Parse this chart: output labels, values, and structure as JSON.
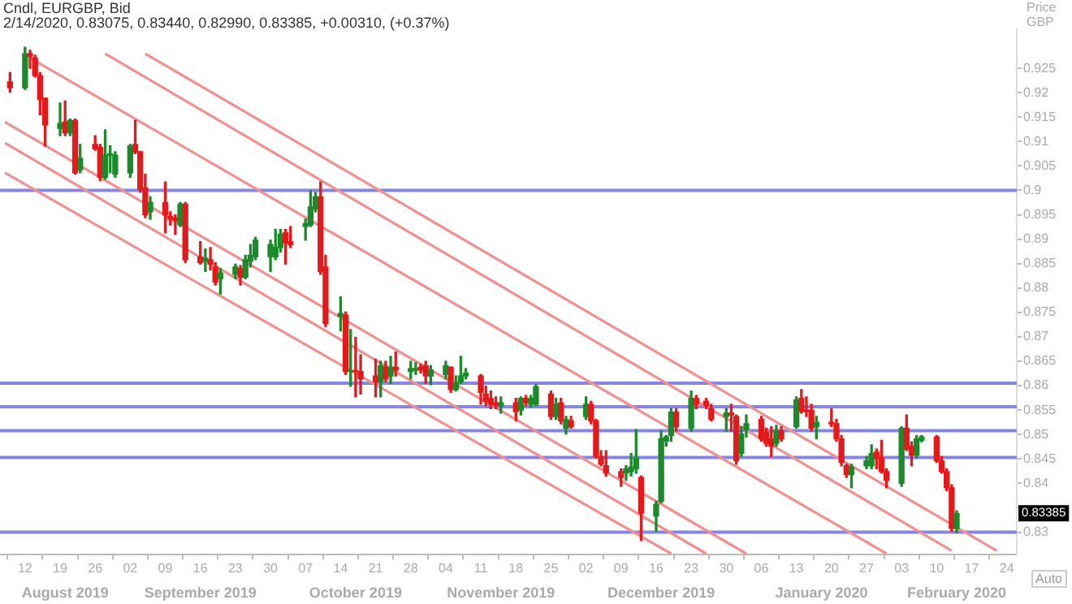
{
  "chart_data": {
    "type": "candlestick",
    "title": "Cndl, EURGBP, Bid",
    "subtitle": "2/14/2020, 0.83075, 0.83440, 0.82990, 0.83385, +0.00310, (+0.37%)",
    "ylabel": "Price GBP",
    "x": [
      "2019-08-09",
      "2019-08-12",
      "2019-08-13",
      "2019-08-14",
      "2019-08-15",
      "2019-08-16",
      "2019-08-19",
      "2019-08-20",
      "2019-08-21",
      "2019-08-22",
      "2019-08-23",
      "2019-08-26",
      "2019-08-27",
      "2019-08-28",
      "2019-08-29",
      "2019-08-30",
      "2019-09-02",
      "2019-09-03",
      "2019-09-04",
      "2019-09-05",
      "2019-09-06",
      "2019-09-09",
      "2019-09-10",
      "2019-09-11",
      "2019-09-12",
      "2019-09-13",
      "2019-09-16",
      "2019-09-17",
      "2019-09-18",
      "2019-09-19",
      "2019-09-20",
      "2019-09-23",
      "2019-09-24",
      "2019-09-25",
      "2019-09-26",
      "2019-09-27",
      "2019-09-30",
      "2019-10-01",
      "2019-10-02",
      "2019-10-03",
      "2019-10-04",
      "2019-10-07",
      "2019-10-08",
      "2019-10-09",
      "2019-10-10",
      "2019-10-11",
      "2019-10-14",
      "2019-10-15",
      "2019-10-16",
      "2019-10-17",
      "2019-10-18",
      "2019-10-21",
      "2019-10-22",
      "2019-10-23",
      "2019-10-24",
      "2019-10-25",
      "2019-10-28",
      "2019-10-29",
      "2019-10-30",
      "2019-10-31",
      "2019-11-01",
      "2019-11-04",
      "2019-11-05",
      "2019-11-06",
      "2019-11-07",
      "2019-11-08",
      "2019-11-11",
      "2019-11-12",
      "2019-11-13",
      "2019-11-14",
      "2019-11-15",
      "2019-11-18",
      "2019-11-19",
      "2019-11-20",
      "2019-11-21",
      "2019-11-22",
      "2019-11-25",
      "2019-11-26",
      "2019-11-27",
      "2019-11-28",
      "2019-11-29",
      "2019-12-02",
      "2019-12-03",
      "2019-12-04",
      "2019-12-05",
      "2019-12-06",
      "2019-12-09",
      "2019-12-10",
      "2019-12-11",
      "2019-12-12",
      "2019-12-13",
      "2019-12-16",
      "2019-12-17",
      "2019-12-18",
      "2019-12-19",
      "2019-12-20",
      "2019-12-23",
      "2019-12-24",
      "2019-12-26",
      "2019-12-27",
      "2019-12-30",
      "2019-12-31",
      "2020-01-01",
      "2020-01-02",
      "2020-01-03",
      "2020-01-06",
      "2020-01-07",
      "2020-01-08",
      "2020-01-09",
      "2020-01-10",
      "2020-01-13",
      "2020-01-14",
      "2020-01-15",
      "2020-01-16",
      "2020-01-17",
      "2020-01-20",
      "2020-01-21",
      "2020-01-22",
      "2020-01-23",
      "2020-01-24",
      "2020-01-27",
      "2020-01-28",
      "2020-01-29",
      "2020-01-30",
      "2020-01-31",
      "2020-02-03",
      "2020-02-04",
      "2020-02-05",
      "2020-02-06",
      "2020-02-07",
      "2020-02-10",
      "2020-02-11",
      "2020-02-12",
      "2020-02-13",
      "2020-02-14"
    ],
    "ohlc": [
      [
        0.9222,
        0.9241,
        0.9201,
        0.921
      ],
      [
        0.921,
        0.9293,
        0.9207,
        0.928
      ],
      [
        0.928,
        0.9287,
        0.925,
        0.9274
      ],
      [
        0.9271,
        0.9277,
        0.9232,
        0.9235
      ],
      [
        0.9235,
        0.9241,
        0.9155,
        0.9186
      ],
      [
        0.9189,
        0.9189,
        0.9091,
        0.9134
      ],
      [
        0.9127,
        0.9179,
        0.9112,
        0.9137
      ],
      [
        0.914,
        0.9183,
        0.9112,
        0.9118
      ],
      [
        0.9118,
        0.9146,
        0.9112,
        0.9143
      ],
      [
        0.9143,
        0.9146,
        0.9033,
        0.9036
      ],
      [
        0.9042,
        0.9094,
        0.9036,
        0.9066
      ],
      [
        0.9094,
        0.9112,
        0.9082,
        0.9085
      ],
      [
        0.9088,
        0.9094,
        0.902,
        0.9027
      ],
      [
        0.9027,
        0.9124,
        0.9023,
        0.9072
      ],
      [
        0.9072,
        0.9091,
        0.9036,
        0.9075
      ],
      [
        0.9033,
        0.9079,
        0.9027,
        0.9072
      ],
      [
        0.9036,
        0.9094,
        0.9027,
        0.9091
      ],
      [
        0.9094,
        0.9143,
        0.9075,
        0.9079
      ],
      [
        0.9079,
        0.9079,
        0.8996,
        0.9002
      ],
      [
        0.9005,
        0.9033,
        0.8944,
        0.895
      ],
      [
        0.8956,
        0.8987,
        0.8941,
        0.8975
      ],
      [
        0.8975,
        0.9017,
        0.8913,
        0.895
      ],
      [
        0.8947,
        0.8956,
        0.8929,
        0.8941
      ],
      [
        0.8944,
        0.895,
        0.891,
        0.8938
      ],
      [
        0.8929,
        0.8975,
        0.8926,
        0.8972
      ],
      [
        0.8972,
        0.8975,
        0.8852,
        0.8858
      ],
      [
        0.8864,
        0.8895,
        0.8849,
        0.8852
      ],
      [
        0.8855,
        0.888,
        0.8834,
        0.8861
      ],
      [
        0.8858,
        0.8883,
        0.8837,
        0.8849
      ],
      [
        0.8843,
        0.8852,
        0.8806,
        0.8812
      ],
      [
        0.8819,
        0.884,
        0.8788,
        0.8831
      ],
      [
        0.8828,
        0.8849,
        0.8819,
        0.8843
      ],
      [
        0.884,
        0.8846,
        0.8806,
        0.8822
      ],
      [
        0.8822,
        0.8867,
        0.8819,
        0.8858
      ],
      [
        0.8855,
        0.8889,
        0.8843,
        0.8867
      ],
      [
        0.8864,
        0.8904,
        0.8858,
        0.8898
      ],
      [
        0.8864,
        0.8898,
        0.8834,
        0.8889
      ],
      [
        0.8864,
        0.892,
        0.8858,
        0.8883
      ],
      [
        0.8883,
        0.892,
        0.8874,
        0.891
      ],
      [
        0.8913,
        0.892,
        0.8849,
        0.8892
      ],
      [
        0.8895,
        0.8926,
        0.8883,
        0.8889
      ],
      [
        0.8926,
        0.8941,
        0.8898,
        0.8932
      ],
      [
        0.8929,
        0.8999,
        0.8926,
        0.8966
      ],
      [
        0.8962,
        0.8996,
        0.8956,
        0.8987
      ],
      [
        0.8987,
        0.9017,
        0.8828,
        0.8834
      ],
      [
        0.8843,
        0.8867,
        0.8721,
        0.8727
      ],
      [
        0.8742,
        0.8782,
        0.8712,
        0.8748
      ],
      [
        0.8745,
        0.8751,
        0.8623,
        0.8629
      ],
      [
        0.8629,
        0.8715,
        0.8599,
        0.8631
      ],
      [
        0.8631,
        0.8699,
        0.8577,
        0.8629
      ],
      [
        0.8629,
        0.8663,
        0.8583,
        0.8614
      ],
      [
        0.862,
        0.8654,
        0.8577,
        0.8608
      ],
      [
        0.8608,
        0.865,
        0.8577,
        0.8641
      ],
      [
        0.8638,
        0.865,
        0.8608,
        0.8614
      ],
      [
        0.862,
        0.866,
        0.8605,
        0.8638
      ],
      [
        0.8638,
        0.8669,
        0.862,
        0.8632
      ],
      [
        0.8629,
        0.865,
        0.8614,
        0.8635
      ],
      [
        0.8632,
        0.8647,
        0.8623,
        0.8635
      ],
      [
        0.8638,
        0.8644,
        0.8626,
        0.8632
      ],
      [
        0.8641,
        0.865,
        0.8605,
        0.862
      ],
      [
        0.862,
        0.8641,
        0.8602,
        0.8632
      ],
      [
        0.8623,
        0.865,
        0.8614,
        0.8641
      ],
      [
        0.8638,
        0.8638,
        0.8586,
        0.8592
      ],
      [
        0.8592,
        0.862,
        0.8589,
        0.8605
      ],
      [
        0.8608,
        0.866,
        0.8605,
        0.862
      ],
      [
        0.862,
        0.8635,
        0.8614,
        0.8626
      ],
      [
        0.862,
        0.8623,
        0.8562,
        0.8586
      ],
      [
        0.8583,
        0.8599,
        0.8559,
        0.8568
      ],
      [
        0.8574,
        0.8589,
        0.8553,
        0.8562
      ],
      [
        0.8565,
        0.8577,
        0.8553,
        0.8559
      ],
      [
        0.8559,
        0.8577,
        0.8544,
        0.8565
      ],
      [
        0.8565,
        0.8574,
        0.8528,
        0.8547
      ],
      [
        0.855,
        0.8577,
        0.854,
        0.8574
      ],
      [
        0.8574,
        0.858,
        0.8559,
        0.8565
      ],
      [
        0.8562,
        0.858,
        0.8556,
        0.8574
      ],
      [
        0.8562,
        0.8602,
        0.8559,
        0.8598
      ],
      [
        0.8583,
        0.8589,
        0.8531,
        0.8537
      ],
      [
        0.8537,
        0.8574,
        0.8531,
        0.8562
      ],
      [
        0.8565,
        0.8574,
        0.8522,
        0.8528
      ],
      [
        0.8513,
        0.8537,
        0.8501,
        0.8531
      ],
      [
        0.8528,
        0.8537,
        0.8513,
        0.8516
      ],
      [
        0.8537,
        0.8577,
        0.8531,
        0.8562
      ],
      [
        0.8562,
        0.8568,
        0.8522,
        0.8528
      ],
      [
        0.8528,
        0.8531,
        0.8452,
        0.8455
      ],
      [
        0.8455,
        0.8467,
        0.8436,
        0.8439
      ],
      [
        0.8436,
        0.8467,
        0.8415,
        0.8421
      ],
      [
        0.8424,
        0.843,
        0.8394,
        0.8412
      ],
      [
        0.8421,
        0.8436,
        0.8406,
        0.843
      ],
      [
        0.8424,
        0.8461,
        0.8415,
        0.8433
      ],
      [
        0.843,
        0.851,
        0.8421,
        0.8452
      ],
      [
        0.8412,
        0.8415,
        0.8283,
        0.8339
      ],
      [
        0.8333,
        0.8363,
        0.8302,
        0.8357
      ],
      [
        0.8363,
        0.8507,
        0.836,
        0.8491
      ],
      [
        0.8486,
        0.8498,
        0.8476,
        0.8495
      ],
      [
        0.8498,
        0.8553,
        0.8486,
        0.8546
      ],
      [
        0.8546,
        0.8553,
        0.8507,
        0.8516
      ],
      [
        0.8513,
        0.8589,
        0.8507,
        0.8574
      ],
      [
        0.8574,
        0.858,
        0.8553,
        0.8562
      ],
      [
        0.8568,
        0.8574,
        0.8553,
        0.8559
      ],
      [
        0.8553,
        0.8562,
        0.8528,
        0.8531
      ],
      [
        0.8537,
        0.8553,
        0.8507,
        0.8544
      ],
      [
        0.8544,
        0.8562,
        0.8507,
        0.854
      ],
      [
        0.8537,
        0.854,
        0.8439,
        0.8446
      ],
      [
        0.8461,
        0.8516,
        0.8455,
        0.8501
      ],
      [
        0.851,
        0.854,
        0.8495,
        0.8522
      ],
      [
        0.8531,
        0.8537,
        0.8486,
        0.8491
      ],
      [
        0.8504,
        0.8513,
        0.8476,
        0.8482
      ],
      [
        0.8491,
        0.8516,
        0.8455,
        0.8476
      ],
      [
        0.8482,
        0.8519,
        0.8476,
        0.8507
      ],
      [
        0.8507,
        0.8516,
        0.8486,
        0.8491
      ],
      [
        0.8516,
        0.8577,
        0.8513,
        0.8571
      ],
      [
        0.8574,
        0.8592,
        0.8544,
        0.8547
      ],
      [
        0.855,
        0.8577,
        0.8537,
        0.8547
      ],
      [
        0.855,
        0.8562,
        0.8507,
        0.8513
      ],
      [
        0.8516,
        0.8537,
        0.8491,
        0.8525
      ],
      [
        0.8525,
        0.8553,
        0.8516,
        0.8522
      ],
      [
        0.8522,
        0.8531,
        0.8486,
        0.8491
      ],
      [
        0.8491,
        0.8498,
        0.8436,
        0.8443
      ],
      [
        0.8436,
        0.8439,
        0.8412,
        0.8418
      ],
      [
        0.8418,
        0.8439,
        0.8391,
        0.8433
      ],
      [
        0.8436,
        0.8455,
        0.843,
        0.8446
      ],
      [
        0.8436,
        0.8479,
        0.843,
        0.8461
      ],
      [
        0.8464,
        0.847,
        0.843,
        0.8452
      ],
      [
        0.8452,
        0.8488,
        0.8421,
        0.8424
      ],
      [
        0.8424,
        0.843,
        0.8391,
        0.8406
      ],
      [
        0.84,
        0.8516,
        0.8394,
        0.8513
      ],
      [
        0.8513,
        0.854,
        0.8467,
        0.847
      ],
      [
        0.8476,
        0.8485,
        0.8436,
        0.8458
      ],
      [
        0.8458,
        0.8498,
        0.8452,
        0.8491
      ],
      [
        0.8488,
        0.8498,
        0.8485,
        0.8495
      ],
      [
        0.8495,
        0.8498,
        0.8443,
        0.8446
      ],
      [
        0.8446,
        0.8455,
        0.8421,
        0.8424
      ],
      [
        0.8424,
        0.843,
        0.8385,
        0.8391
      ],
      [
        0.8391,
        0.8397,
        0.8302,
        0.8308
      ],
      [
        0.83075,
        0.8344,
        0.8299,
        0.83385
      ]
    ],
    "colors": [
      "#e31a1c",
      "#1b8a2b",
      "#e31a1c",
      "#e31a1c",
      "#e31a1c",
      "#e31a1c",
      "#1b8a2b",
      "#e31a1c",
      "#1b8a2b",
      "#e31a1c",
      "#1b8a2b",
      "#e31a1c",
      "#e31a1c",
      "#1b8a2b",
      "#1b8a2b",
      "#1b8a2b",
      "#1b8a2b",
      "#e31a1c",
      "#e31a1c",
      "#e31a1c",
      "#1b8a2b",
      "#e31a1c",
      "#e31a1c",
      "#e31a1c",
      "#1b8a2b",
      "#e31a1c",
      "#e31a1c",
      "#1b8a2b",
      "#e31a1c",
      "#e31a1c",
      "#1b8a2b",
      "#1b8a2b",
      "#e31a1c",
      "#1b8a2b",
      "#1b8a2b",
      "#1b8a2b",
      "#1b8a2b",
      "#1b8a2b",
      "#1b8a2b",
      "#e31a1c",
      "#e31a1c",
      "#1b8a2b",
      "#1b8a2b",
      "#1b8a2b",
      "#e31a1c",
      "#e31a1c",
      "#1b8a2b",
      "#e31a1c",
      "#1b8a2b",
      "#e31a1c",
      "#e31a1c",
      "#e31a1c",
      "#1b8a2b",
      "#e31a1c",
      "#1b8a2b",
      "#e31a1c",
      "#1b8a2b",
      "#1b8a2b",
      "#e31a1c",
      "#e31a1c",
      "#1b8a2b",
      "#1b8a2b",
      "#e31a1c",
      "#1b8a2b",
      "#1b8a2b",
      "#1b8a2b",
      "#e31a1c",
      "#e31a1c",
      "#e31a1c",
      "#e31a1c",
      "#1b8a2b",
      "#e31a1c",
      "#1b8a2b",
      "#e31a1c",
      "#1b8a2b",
      "#1b8a2b",
      "#e31a1c",
      "#1b8a2b",
      "#e31a1c",
      "#1b8a2b",
      "#e31a1c",
      "#1b8a2b",
      "#e31a1c",
      "#e31a1c",
      "#e31a1c",
      "#e31a1c",
      "#e31a1c",
      "#1b8a2b",
      "#1b8a2b",
      "#1b8a2b",
      "#e31a1c",
      "#1b8a2b",
      "#1b8a2b",
      "#1b8a2b",
      "#1b8a2b",
      "#e31a1c",
      "#1b8a2b",
      "#e31a1c",
      "#e31a1c",
      "#e31a1c",
      "#1b8a2b",
      "#e31a1c",
      "#e31a1c",
      "#1b8a2b",
      "#1b8a2b",
      "#e31a1c",
      "#e31a1c",
      "#e31a1c",
      "#1b8a2b",
      "#e31a1c",
      "#1b8a2b",
      "#e31a1c",
      "#e31a1c",
      "#e31a1c",
      "#1b8a2b",
      "#e31a1c",
      "#e31a1c",
      "#e31a1c",
      "#e31a1c",
      "#1b8a2b",
      "#1b8a2b",
      "#1b8a2b",
      "#e31a1c",
      "#e31a1c",
      "#e31a1c",
      "#1b8a2b",
      "#e31a1c",
      "#e31a1c",
      "#1b8a2b",
      "#1b8a2b",
      "#e31a1c",
      "#e31a1c",
      "#e31a1c",
      "#e31a1c",
      "#1b8a2b"
    ],
    "series": [
      {
        "type": "line",
        "color": "#f09090",
        "x": [
          "2019-08-08",
          "2019-12-19"
        ],
        "values": [
          0.9036,
          0.8256
        ]
      },
      {
        "type": "line",
        "color": "#f09090",
        "x": [
          "2019-08-08",
          "2019-12-26"
        ],
        "values": [
          0.9097,
          0.8256
        ]
      },
      {
        "type": "line",
        "color": "#f09090",
        "x": [
          "2019-08-08",
          "2020-01-03"
        ],
        "values": [
          0.914,
          0.8256
        ]
      },
      {
        "type": "line",
        "color": "#f09090",
        "x": [
          "2019-08-13",
          "2020-01-31"
        ],
        "values": [
          0.9271,
          0.8256
        ]
      },
      {
        "type": "line",
        "color": "#f09090",
        "x": [
          "2019-08-28",
          "2020-02-13"
        ],
        "values": [
          0.928,
          0.8262
        ]
      },
      {
        "type": "line",
        "color": "#f09090",
        "x": [
          "2019-09-05",
          "2020-02-22"
        ],
        "values": [
          0.928,
          0.8262
        ]
      }
    ],
    "ref_lines": [
      {
        "axis": "y",
        "value": 0.9,
        "color": "#8585e6"
      },
      {
        "axis": "y",
        "value": 0.8605,
        "color": "#8585e6"
      },
      {
        "axis": "y",
        "value": 0.8557,
        "color": "#8585e6"
      },
      {
        "axis": "y",
        "value": 0.8508,
        "color": "#8585e6"
      },
      {
        "axis": "y",
        "value": 0.8453,
        "color": "#8585e6"
      },
      {
        "axis": "y",
        "value": 0.83,
        "color": "#8585e6"
      }
    ],
    "xlim": [
      "2019-08-07",
      "2020-02-26"
    ],
    "xticks": [
      {
        "value": "2019-08-12",
        "label": "12"
      },
      {
        "value": "2019-08-19",
        "label": "19"
      },
      {
        "value": "2019-08-26",
        "label": "26"
      },
      {
        "value": "2019-09-02",
        "label": "02"
      },
      {
        "value": "2019-09-09",
        "label": "09"
      },
      {
        "value": "2019-09-16",
        "label": "16"
      },
      {
        "value": "2019-09-23",
        "label": "23"
      },
      {
        "value": "2019-09-30",
        "label": "30"
      },
      {
        "value": "2019-10-07",
        "label": "07"
      },
      {
        "value": "2019-10-14",
        "label": "14"
      },
      {
        "value": "2019-10-21",
        "label": "21"
      },
      {
        "value": "2019-10-28",
        "label": "28"
      },
      {
        "value": "2019-11-04",
        "label": "04"
      },
      {
        "value": "2019-11-11",
        "label": "11"
      },
      {
        "value": "2019-11-18",
        "label": "18"
      },
      {
        "value": "2019-11-25",
        "label": "25"
      },
      {
        "value": "2019-12-02",
        "label": "02"
      },
      {
        "value": "2019-12-09",
        "label": "09"
      },
      {
        "value": "2019-12-16",
        "label": "16"
      },
      {
        "value": "2019-12-23",
        "label": "23"
      },
      {
        "value": "2019-12-30",
        "label": "30"
      },
      {
        "value": "2020-01-06",
        "label": "06"
      },
      {
        "value": "2020-01-13",
        "label": "13"
      },
      {
        "value": "2020-01-20",
        "label": "20"
      },
      {
        "value": "2020-01-27",
        "label": "27"
      },
      {
        "value": "2020-02-03",
        "label": "03"
      },
      {
        "value": "2020-02-10",
        "label": "10"
      },
      {
        "value": "2020-02-17",
        "label": "17"
      },
      {
        "value": "2020-02-24",
        "label": "24"
      }
    ],
    "x2lim": [
      "2019-08-07",
      "2020-02-26"
    ],
    "x2ticks": [
      {
        "value": "2019-08-20",
        "label": "August 2019"
      },
      {
        "value": "2019-09-16",
        "label": "September 2019"
      },
      {
        "value": "2019-10-17",
        "label": "October 2019"
      },
      {
        "value": "2019-11-15",
        "label": "November 2019"
      },
      {
        "value": "2019-12-17",
        "label": "December 2019"
      },
      {
        "value": "2020-01-18",
        "label": "January 2020"
      },
      {
        "value": "2020-02-14",
        "label": "February 2020"
      }
    ],
    "ylim": [
      0.8254,
      0.933
    ],
    "yticks": [
      0.83,
      {
        "value": 0.835,
        "label": null
      },
      0.84,
      0.845,
      0.85,
      0.855,
      0.86,
      0.865,
      0.87,
      0.875,
      0.88,
      0.885,
      0.89,
      0.895,
      0.9,
      0.905,
      0.91,
      0.915,
      0.92,
      0.925
    ],
    "annotations": [
      "0.83385",
      "Auto"
    ],
    "legend": false,
    "grid": false,
    "marker": "none"
  }
}
